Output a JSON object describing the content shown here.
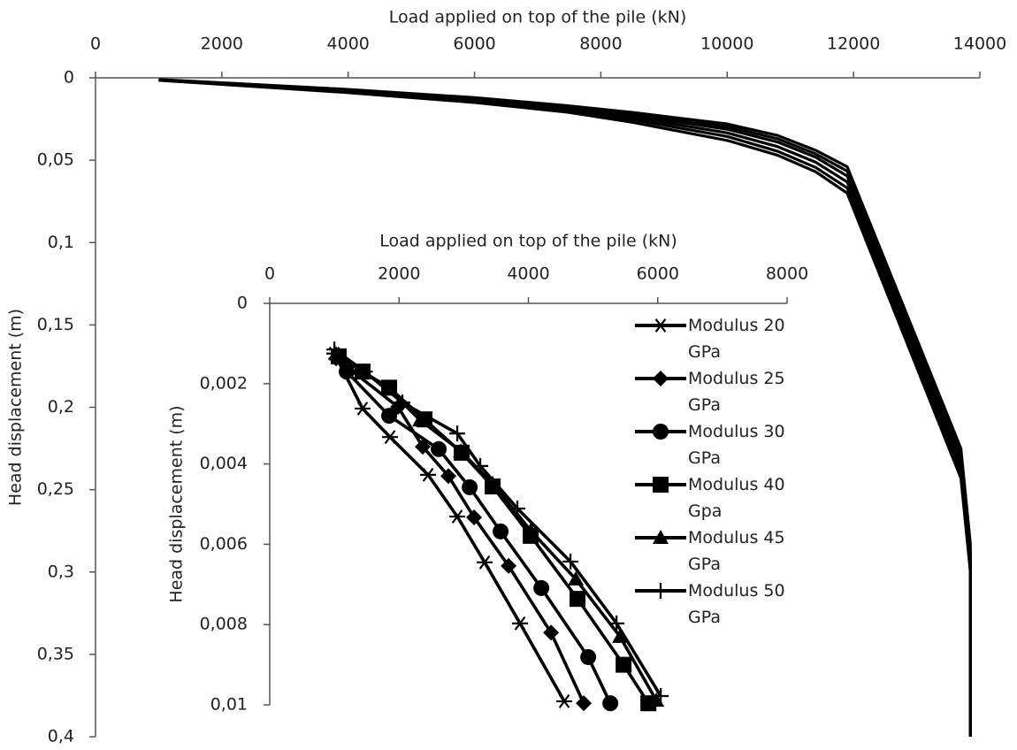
{
  "chart_data": [
    {
      "type": "line",
      "x_label": "Load applied on top of the pile (kN)",
      "y_label": "Head displacement (m)",
      "xlim": [
        0,
        14000
      ],
      "xticks": [
        0,
        2000,
        4000,
        6000,
        8000,
        10000,
        12000,
        14000
      ],
      "ylim": [
        0,
        0.4
      ],
      "y_inverted": true,
      "yticks": [
        0,
        {
          "value": 0.05,
          "label": "0,05"
        },
        {
          "value": 0.1,
          "label": "0,1"
        },
        {
          "value": 0.15,
          "label": "0,15"
        },
        {
          "value": 0.2,
          "label": "0,2"
        },
        {
          "value": 0.25,
          "label": "0,25"
        },
        {
          "value": 0.3,
          "label": "0,3"
        },
        {
          "value": 0.35,
          "label": "0,35"
        },
        {
          "value": 0.4,
          "label": "0,4"
        }
      ],
      "series": [
        {
          "color": "#000000",
          "x": [
            1000,
            2000,
            4000,
            6000,
            7500,
            8500,
            10000,
            10800,
            11400,
            11900,
            13700,
            13850,
            13850
          ],
          "values": [
            0.0015,
            0.004,
            0.009,
            0.015,
            0.021,
            0.027,
            0.038,
            0.047,
            0.057,
            0.07,
            0.243,
            0.3,
            0.4
          ]
        },
        {
          "color": "#000000",
          "x": [
            1000,
            2000,
            4000,
            6000,
            7500,
            8500,
            10000,
            10800,
            11400,
            11900,
            13700,
            13850,
            13850
          ],
          "values": [
            0.0014,
            0.0038,
            0.0085,
            0.0142,
            0.0198,
            0.0254,
            0.0356,
            0.0446,
            0.0544,
            0.0668,
            0.2394,
            0.2966,
            0.4
          ]
        },
        {
          "color": "#000000",
          "x": [
            1000,
            2000,
            4000,
            6000,
            7500,
            8500,
            10000,
            10800,
            11400,
            11900,
            13700,
            13850,
            13850
          ],
          "values": [
            0.0013,
            0.0036,
            0.0081,
            0.0134,
            0.0188,
            0.024,
            0.0334,
            0.0418,
            0.0512,
            0.0632,
            0.2358,
            0.2932,
            0.4
          ]
        },
        {
          "color": "#000000",
          "x": [
            1000,
            2000,
            4000,
            6000,
            7500,
            8500,
            10000,
            10800,
            11400,
            11900,
            13700,
            13850,
            13850
          ],
          "values": [
            0.0012,
            0.0034,
            0.0078,
            0.0128,
            0.018,
            0.0228,
            0.0312,
            0.039,
            0.0482,
            0.0596,
            0.2322,
            0.2898,
            0.4
          ]
        },
        {
          "color": "#000000",
          "x": [
            1000,
            2000,
            4000,
            6000,
            7500,
            8500,
            10000,
            10800,
            11400,
            11900,
            13700,
            13850,
            13850
          ],
          "values": [
            0.0011,
            0.0032,
            0.0074,
            0.0124,
            0.0175,
            0.0218,
            0.0296,
            0.037,
            0.0462,
            0.0566,
            0.2286,
            0.2864,
            0.4
          ]
        },
        {
          "color": "#000000",
          "x": [
            1000,
            2000,
            4000,
            6000,
            7500,
            8500,
            10000,
            10800,
            11400,
            11900,
            13700,
            13850,
            13850
          ],
          "values": [
            0.001,
            0.003,
            0.007,
            0.012,
            0.017,
            0.021,
            0.028,
            0.035,
            0.044,
            0.054,
            0.225,
            0.283,
            0.4
          ]
        }
      ]
    },
    {
      "type": "line",
      "x_label": "Load applied on top of the pile (kN)",
      "y_label": "Head displacement (m)",
      "xlim": [
        0,
        8000
      ],
      "xticks": [
        0,
        2000,
        4000,
        6000,
        8000
      ],
      "ylim": [
        0,
        0.01
      ],
      "y_inverted": true,
      "yticks": [
        0,
        {
          "value": 0.002,
          "label": "0,002"
        },
        {
          "value": 0.004,
          "label": "0,004"
        },
        {
          "value": 0.006,
          "label": "0,006"
        },
        {
          "value": 0.008,
          "label": "0,008"
        },
        {
          "value": 0.01,
          "label": "0,01"
        }
      ],
      "series": [
        {
          "name": "Modulus 20 GPa",
          "color": "#000000",
          "marker": "star",
          "x": [
            1000,
            1436,
            1860,
            2449,
            2900,
            3324,
            3871,
            4555
          ],
          "values": [
            0.00125,
            0.00262,
            0.00333,
            0.00427,
            0.00531,
            0.00645,
            0.00797,
            0.00991
          ]
        },
        {
          "name": "Modulus 25 GPa",
          "color": "#000000",
          "marker": "diamond",
          "x": [
            1026,
            1984,
            2366,
            2763,
            3160,
            3694,
            4350,
            4856
          ],
          "values": [
            0.00137,
            0.00258,
            0.00357,
            0.0043,
            0.00533,
            0.00654,
            0.0082,
            0.00996
          ]
        },
        {
          "name": "Modulus 30 GPa",
          "color": "#000000",
          "marker": "circle",
          "x": [
            1190,
            1847,
            2613,
            3092,
            3570,
            4200,
            4925,
            5267
          ],
          "values": [
            0.0017,
            0.0028,
            0.00363,
            0.00458,
            0.00568,
            0.00709,
            0.00881,
            0.00996
          ]
        },
        {
          "name": "Modulus 40 Gpa",
          "color": "#000000",
          "marker": "square",
          "x": [
            1067,
            1436,
            1847,
            2394,
            2969,
            3447,
            4036,
            4760,
            5472,
            5855
          ],
          "values": [
            0.00132,
            0.0017,
            0.0021,
            0.00289,
            0.00372,
            0.00456,
            0.00579,
            0.00736,
            0.009,
            0.00996
          ]
        },
        {
          "name": "Modulus 45 GPa",
          "color": "#000000",
          "marker": "triangle",
          "x": [
            1026,
            1847,
            2326,
            2955,
            3447,
            4036,
            4733,
            5417,
            5978
          ],
          "values": [
            0.00126,
            0.00214,
            0.00291,
            0.00368,
            0.00449,
            0.00566,
            0.00687,
            0.0083,
            0.00989
          ]
        },
        {
          "name": "Modulus 50 GPa",
          "color": "#000000",
          "marker": "plus",
          "x": [
            1000,
            1470,
            2052,
            2900,
            3256,
            3830,
            4651,
            5363,
            6047
          ],
          "values": [
            0.00115,
            0.0017,
            0.00247,
            0.00324,
            0.00405,
            0.00511,
            0.00643,
            0.00797,
            0.00978
          ]
        }
      ]
    }
  ]
}
